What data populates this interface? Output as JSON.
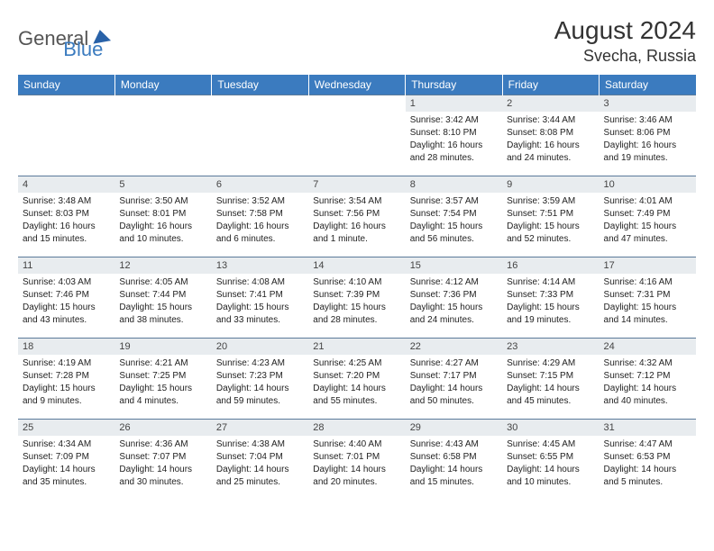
{
  "logo": {
    "text1": "General",
    "text2": "Blue"
  },
  "title": "August 2024",
  "location": "Svecha, Russia",
  "weekdays": [
    "Sunday",
    "Monday",
    "Tuesday",
    "Wednesday",
    "Thursday",
    "Friday",
    "Saturday"
  ],
  "colors": {
    "header_bg": "#3b7bbf",
    "daynum_bg": "#e8ecef",
    "border": "#5b7a9a",
    "text": "#222222",
    "logo_gray": "#555555",
    "logo_blue": "#3b7bbf"
  },
  "weeks": [
    [
      null,
      null,
      null,
      null,
      {
        "n": "1",
        "sr": "Sunrise: 3:42 AM",
        "ss": "Sunset: 8:10 PM",
        "dl1": "Daylight: 16 hours",
        "dl2": "and 28 minutes."
      },
      {
        "n": "2",
        "sr": "Sunrise: 3:44 AM",
        "ss": "Sunset: 8:08 PM",
        "dl1": "Daylight: 16 hours",
        "dl2": "and 24 minutes."
      },
      {
        "n": "3",
        "sr": "Sunrise: 3:46 AM",
        "ss": "Sunset: 8:06 PM",
        "dl1": "Daylight: 16 hours",
        "dl2": "and 19 minutes."
      }
    ],
    [
      {
        "n": "4",
        "sr": "Sunrise: 3:48 AM",
        "ss": "Sunset: 8:03 PM",
        "dl1": "Daylight: 16 hours",
        "dl2": "and 15 minutes."
      },
      {
        "n": "5",
        "sr": "Sunrise: 3:50 AM",
        "ss": "Sunset: 8:01 PM",
        "dl1": "Daylight: 16 hours",
        "dl2": "and 10 minutes."
      },
      {
        "n": "6",
        "sr": "Sunrise: 3:52 AM",
        "ss": "Sunset: 7:58 PM",
        "dl1": "Daylight: 16 hours",
        "dl2": "and 6 minutes."
      },
      {
        "n": "7",
        "sr": "Sunrise: 3:54 AM",
        "ss": "Sunset: 7:56 PM",
        "dl1": "Daylight: 16 hours",
        "dl2": "and 1 minute."
      },
      {
        "n": "8",
        "sr": "Sunrise: 3:57 AM",
        "ss": "Sunset: 7:54 PM",
        "dl1": "Daylight: 15 hours",
        "dl2": "and 56 minutes."
      },
      {
        "n": "9",
        "sr": "Sunrise: 3:59 AM",
        "ss": "Sunset: 7:51 PM",
        "dl1": "Daylight: 15 hours",
        "dl2": "and 52 minutes."
      },
      {
        "n": "10",
        "sr": "Sunrise: 4:01 AM",
        "ss": "Sunset: 7:49 PM",
        "dl1": "Daylight: 15 hours",
        "dl2": "and 47 minutes."
      }
    ],
    [
      {
        "n": "11",
        "sr": "Sunrise: 4:03 AM",
        "ss": "Sunset: 7:46 PM",
        "dl1": "Daylight: 15 hours",
        "dl2": "and 43 minutes."
      },
      {
        "n": "12",
        "sr": "Sunrise: 4:05 AM",
        "ss": "Sunset: 7:44 PM",
        "dl1": "Daylight: 15 hours",
        "dl2": "and 38 minutes."
      },
      {
        "n": "13",
        "sr": "Sunrise: 4:08 AM",
        "ss": "Sunset: 7:41 PM",
        "dl1": "Daylight: 15 hours",
        "dl2": "and 33 minutes."
      },
      {
        "n": "14",
        "sr": "Sunrise: 4:10 AM",
        "ss": "Sunset: 7:39 PM",
        "dl1": "Daylight: 15 hours",
        "dl2": "and 28 minutes."
      },
      {
        "n": "15",
        "sr": "Sunrise: 4:12 AM",
        "ss": "Sunset: 7:36 PM",
        "dl1": "Daylight: 15 hours",
        "dl2": "and 24 minutes."
      },
      {
        "n": "16",
        "sr": "Sunrise: 4:14 AM",
        "ss": "Sunset: 7:33 PM",
        "dl1": "Daylight: 15 hours",
        "dl2": "and 19 minutes."
      },
      {
        "n": "17",
        "sr": "Sunrise: 4:16 AM",
        "ss": "Sunset: 7:31 PM",
        "dl1": "Daylight: 15 hours",
        "dl2": "and 14 minutes."
      }
    ],
    [
      {
        "n": "18",
        "sr": "Sunrise: 4:19 AM",
        "ss": "Sunset: 7:28 PM",
        "dl1": "Daylight: 15 hours",
        "dl2": "and 9 minutes."
      },
      {
        "n": "19",
        "sr": "Sunrise: 4:21 AM",
        "ss": "Sunset: 7:25 PM",
        "dl1": "Daylight: 15 hours",
        "dl2": "and 4 minutes."
      },
      {
        "n": "20",
        "sr": "Sunrise: 4:23 AM",
        "ss": "Sunset: 7:23 PM",
        "dl1": "Daylight: 14 hours",
        "dl2": "and 59 minutes."
      },
      {
        "n": "21",
        "sr": "Sunrise: 4:25 AM",
        "ss": "Sunset: 7:20 PM",
        "dl1": "Daylight: 14 hours",
        "dl2": "and 55 minutes."
      },
      {
        "n": "22",
        "sr": "Sunrise: 4:27 AM",
        "ss": "Sunset: 7:17 PM",
        "dl1": "Daylight: 14 hours",
        "dl2": "and 50 minutes."
      },
      {
        "n": "23",
        "sr": "Sunrise: 4:29 AM",
        "ss": "Sunset: 7:15 PM",
        "dl1": "Daylight: 14 hours",
        "dl2": "and 45 minutes."
      },
      {
        "n": "24",
        "sr": "Sunrise: 4:32 AM",
        "ss": "Sunset: 7:12 PM",
        "dl1": "Daylight: 14 hours",
        "dl2": "and 40 minutes."
      }
    ],
    [
      {
        "n": "25",
        "sr": "Sunrise: 4:34 AM",
        "ss": "Sunset: 7:09 PM",
        "dl1": "Daylight: 14 hours",
        "dl2": "and 35 minutes."
      },
      {
        "n": "26",
        "sr": "Sunrise: 4:36 AM",
        "ss": "Sunset: 7:07 PM",
        "dl1": "Daylight: 14 hours",
        "dl2": "and 30 minutes."
      },
      {
        "n": "27",
        "sr": "Sunrise: 4:38 AM",
        "ss": "Sunset: 7:04 PM",
        "dl1": "Daylight: 14 hours",
        "dl2": "and 25 minutes."
      },
      {
        "n": "28",
        "sr": "Sunrise: 4:40 AM",
        "ss": "Sunset: 7:01 PM",
        "dl1": "Daylight: 14 hours",
        "dl2": "and 20 minutes."
      },
      {
        "n": "29",
        "sr": "Sunrise: 4:43 AM",
        "ss": "Sunset: 6:58 PM",
        "dl1": "Daylight: 14 hours",
        "dl2": "and 15 minutes."
      },
      {
        "n": "30",
        "sr": "Sunrise: 4:45 AM",
        "ss": "Sunset: 6:55 PM",
        "dl1": "Daylight: 14 hours",
        "dl2": "and 10 minutes."
      },
      {
        "n": "31",
        "sr": "Sunrise: 4:47 AM",
        "ss": "Sunset: 6:53 PM",
        "dl1": "Daylight: 14 hours",
        "dl2": "and 5 minutes."
      }
    ]
  ]
}
